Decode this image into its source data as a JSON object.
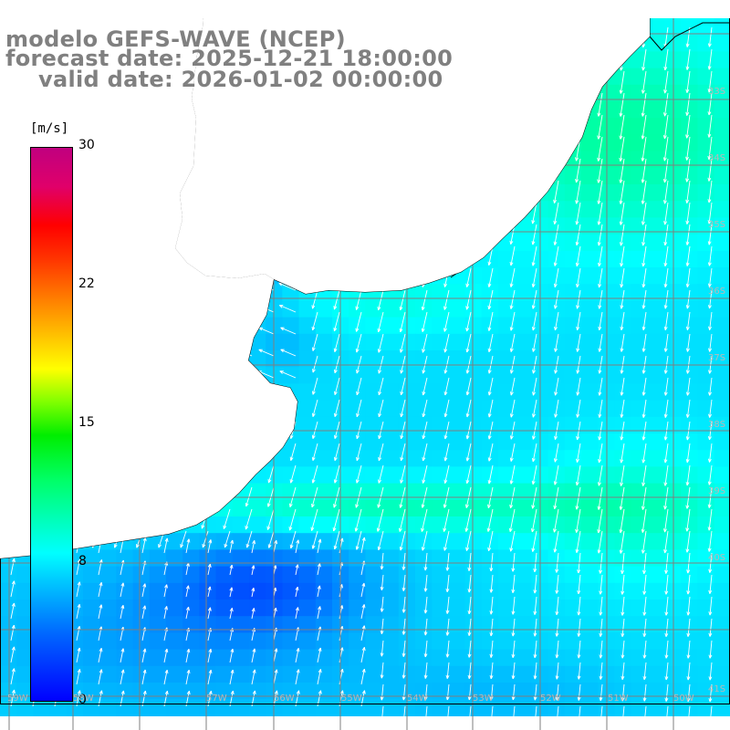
{
  "title": {
    "line1": "modelo GEFS-WAVE (NCEP)",
    "line2": "forecast date: 2025-12-21 18:00:00",
    "line3": "valid date: 2026-01-02 00:00:00"
  },
  "colorbar": {
    "unit": "[m/s]",
    "ticks": [
      "30",
      "22",
      "15",
      "8",
      "0"
    ],
    "min": 0,
    "max": 30,
    "colors": [
      "#0000ff",
      "#0099ff",
      "#00ffff",
      "#00ee00",
      "#ffff00",
      "#ff6600",
      "#ff0000",
      "#c0007f"
    ]
  },
  "lat_labels": [
    "33S",
    "34S",
    "35S",
    "36S",
    "37S",
    "38S",
    "39S",
    "40S",
    "41S"
  ],
  "lon_labels": [
    "59W",
    "58W",
    "57W",
    "56W",
    "55W",
    "54W",
    "53W",
    "52W",
    "51W",
    "50W"
  ],
  "map": {
    "variable": "wind speed and direction",
    "land_color": "#ffffff",
    "coastline_color": "#000000",
    "grid_color": "#808080"
  }
}
